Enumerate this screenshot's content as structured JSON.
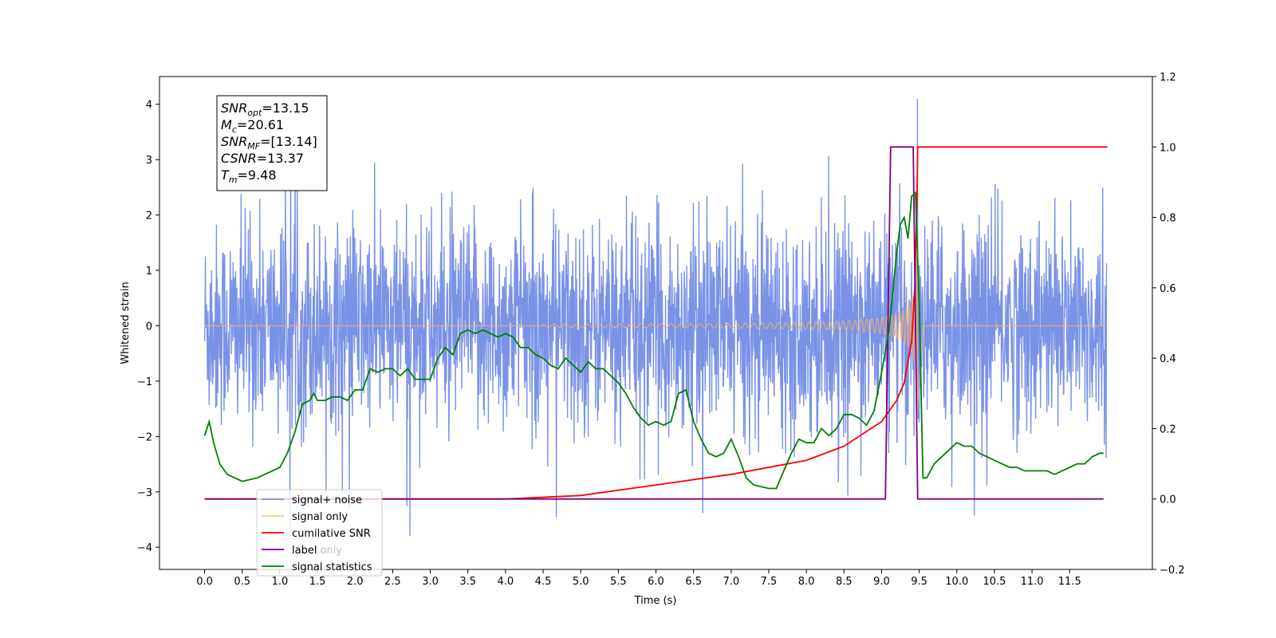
{
  "chart_data": {
    "type": "line",
    "xlabel": "Time (s)",
    "ylabel": "Whitened strain",
    "xlim": [
      -0.6,
      12.6
    ],
    "ylim": [
      -4.4,
      4.5
    ],
    "y2lim": [
      -0.2,
      1.2
    ],
    "x_ticks": [
      "0.0",
      "0.5",
      "1.0",
      "1.5",
      "2.0",
      "2.5",
      "3.0",
      "3.5",
      "4.0",
      "4.5",
      "5.0",
      "5.5",
      "6.0",
      "6.5",
      "7.0",
      "7.5",
      "8.0",
      "8.5",
      "9.0",
      "9.5",
      "10.0",
      "10.5",
      "11.0",
      "11.5"
    ],
    "y_ticks": [
      "4",
      "3",
      "2",
      "1",
      "0",
      "−1",
      "−2",
      "−3",
      "−4"
    ],
    "y2_ticks": [
      "1.2",
      "1.0",
      "0.8",
      "0.6",
      "0.4",
      "0.2",
      "0.0",
      "−0.2"
    ],
    "annotation": [
      {
        "sym": "SNR",
        "sub": "opt",
        "val": "=13.15"
      },
      {
        "sym": "M",
        "sub": "c",
        "val": "=20.61"
      },
      {
        "sym": "SNR",
        "sub": "MF",
        "val": "=[13.14]"
      },
      {
        "sym": "CSNR",
        "sub": "",
        "val": "=13.37"
      },
      {
        "sym": "T",
        "sub": "m",
        "val": "=9.48"
      }
    ],
    "legend": {
      "position": "lower-left",
      "entries": [
        {
          "label": "signal+ noise",
          "color": "#7b93e6"
        },
        {
          "label": "signal only",
          "color": "#ffc878"
        },
        {
          "label": "cumilative SNR",
          "color": "#ff0000"
        },
        {
          "label": "label",
          "color": "#800080"
        },
        {
          "label": "signal statistics",
          "color": "#008000"
        }
      ]
    },
    "ghost_legend_text": "label only",
    "series": [
      {
        "name": "signal+ noise",
        "axis": "left",
        "color": "#6b87e4",
        "description_stats": {
          "x_start": 0.0,
          "x_end": 11.99,
          "typical_std": 0.9,
          "max": 4.1,
          "min": -3.8
        }
      },
      {
        "name": "signal only",
        "axis": "left",
        "color": "#f0b070",
        "chirp": {
          "t_start": 4.5,
          "t_merge": 9.48,
          "peak_amplitude": 1.8,
          "t_end": 9.55
        }
      },
      {
        "name": "cumilative SNR",
        "axis": "right",
        "color": "#ff0000",
        "x": [
          0.0,
          4.0,
          5.0,
          6.0,
          7.0,
          8.0,
          8.5,
          9.0,
          9.2,
          9.3,
          9.4,
          9.44,
          9.47,
          9.48,
          12.0
        ],
        "y": [
          0.0,
          0.0,
          0.01,
          0.04,
          0.07,
          0.11,
          0.15,
          0.22,
          0.28,
          0.33,
          0.45,
          0.6,
          0.85,
          1.0,
          1.0
        ]
      },
      {
        "name": "label",
        "axis": "right",
        "color": "#800080",
        "x": [
          0.0,
          9.05,
          9.12,
          9.42,
          9.48,
          11.95
        ],
        "y": [
          0.0,
          0.0,
          1.0,
          1.0,
          0.0,
          0.0
        ]
      },
      {
        "name": "signal statistics",
        "axis": "right",
        "color": "#008000",
        "x": [
          0.0,
          0.06,
          0.12,
          0.2,
          0.3,
          0.4,
          0.5,
          0.6,
          0.7,
          0.8,
          0.9,
          1.0,
          1.1,
          1.2,
          1.3,
          1.4,
          1.45,
          1.5,
          1.6,
          1.7,
          1.8,
          1.9,
          2.0,
          2.1,
          2.2,
          2.3,
          2.4,
          2.5,
          2.6,
          2.7,
          2.8,
          2.9,
          3.0,
          3.1,
          3.2,
          3.3,
          3.4,
          3.5,
          3.6,
          3.7,
          3.8,
          3.9,
          4.0,
          4.1,
          4.2,
          4.3,
          4.4,
          4.5,
          4.6,
          4.7,
          4.8,
          4.9,
          5.0,
          5.1,
          5.2,
          5.3,
          5.4,
          5.5,
          5.6,
          5.7,
          5.8,
          5.9,
          6.0,
          6.1,
          6.2,
          6.3,
          6.4,
          6.5,
          6.6,
          6.7,
          6.8,
          6.9,
          7.0,
          7.1,
          7.2,
          7.3,
          7.4,
          7.5,
          7.6,
          7.7,
          7.8,
          7.9,
          8.0,
          8.1,
          8.2,
          8.3,
          8.4,
          8.5,
          8.6,
          8.7,
          8.8,
          8.9,
          9.0,
          9.1,
          9.2,
          9.25,
          9.3,
          9.35,
          9.4,
          9.45,
          9.5,
          9.55,
          9.6,
          9.7,
          9.8,
          9.9,
          10.0,
          10.1,
          10.2,
          10.3,
          10.4,
          10.5,
          10.6,
          10.7,
          10.8,
          10.9,
          11.0,
          11.1,
          11.2,
          11.3,
          11.4,
          11.5,
          11.6,
          11.7,
          11.8,
          11.9,
          11.95
        ],
        "y": [
          0.18,
          0.22,
          0.16,
          0.1,
          0.07,
          0.06,
          0.05,
          0.055,
          0.06,
          0.07,
          0.08,
          0.09,
          0.13,
          0.19,
          0.27,
          0.28,
          0.3,
          0.28,
          0.28,
          0.29,
          0.29,
          0.28,
          0.31,
          0.31,
          0.37,
          0.36,
          0.37,
          0.37,
          0.35,
          0.37,
          0.34,
          0.34,
          0.34,
          0.4,
          0.43,
          0.41,
          0.47,
          0.48,
          0.47,
          0.48,
          0.47,
          0.46,
          0.47,
          0.46,
          0.43,
          0.43,
          0.41,
          0.4,
          0.38,
          0.37,
          0.4,
          0.38,
          0.36,
          0.39,
          0.37,
          0.37,
          0.35,
          0.33,
          0.3,
          0.26,
          0.23,
          0.21,
          0.22,
          0.21,
          0.22,
          0.3,
          0.31,
          0.22,
          0.17,
          0.13,
          0.12,
          0.13,
          0.17,
          0.12,
          0.06,
          0.04,
          0.035,
          0.03,
          0.03,
          0.08,
          0.13,
          0.17,
          0.16,
          0.16,
          0.2,
          0.18,
          0.2,
          0.24,
          0.24,
          0.23,
          0.21,
          0.25,
          0.36,
          0.48,
          0.7,
          0.78,
          0.8,
          0.74,
          0.86,
          0.87,
          0.56,
          0.06,
          0.06,
          0.1,
          0.12,
          0.14,
          0.16,
          0.15,
          0.15,
          0.13,
          0.12,
          0.11,
          0.1,
          0.09,
          0.09,
          0.08,
          0.08,
          0.08,
          0.08,
          0.07,
          0.08,
          0.09,
          0.1,
          0.1,
          0.12,
          0.13,
          0.13
        ]
      }
    ]
  }
}
